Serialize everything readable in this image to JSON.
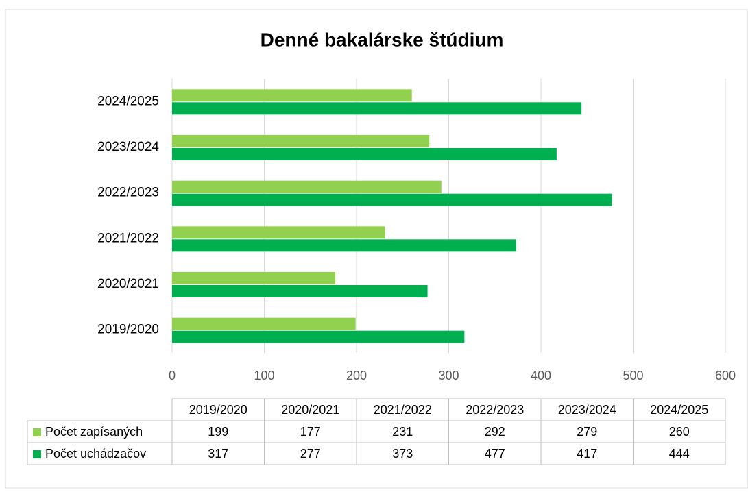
{
  "chart_data": {
    "type": "bar",
    "orientation": "horizontal",
    "title": "Denné bakalárske štúdium",
    "categories": [
      "2019/2020",
      "2020/2021",
      "2021/2022",
      "2022/2023",
      "2023/2024",
      "2024/2025"
    ],
    "series": [
      {
        "name": "Počet zapísaných",
        "color": "#92d050",
        "values": [
          199,
          177,
          231,
          292,
          279,
          260
        ]
      },
      {
        "name": "Počet uchádzačov",
        "color": "#00b050",
        "values": [
          317,
          277,
          373,
          477,
          417,
          444
        ]
      }
    ],
    "xlim": [
      0,
      600
    ],
    "xticks": [
      0,
      100,
      200,
      300,
      400,
      500,
      600
    ],
    "grid": true,
    "data_table": true
  }
}
